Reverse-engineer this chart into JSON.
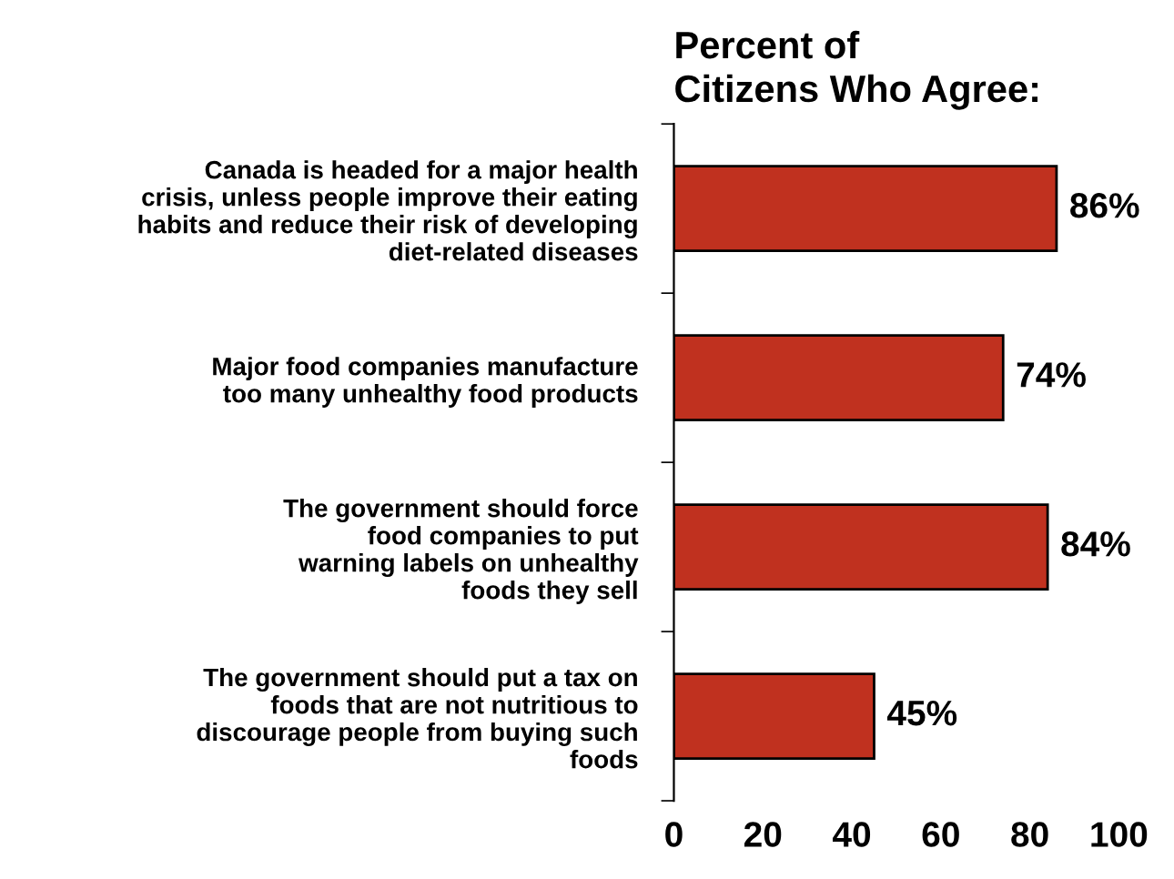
{
  "chart_data": {
    "type": "bar",
    "orientation": "horizontal",
    "title": "Percent of\nCitizens Who Agree:",
    "categories": [
      "Canada is headed for a major health\ncrisis, unless people improve their eating\nhabits and reduce their risk of developing\ndiet-related diseases",
      "Major food companies manufacture\ntoo many unhealthy food products",
      "The government should force\nfood companies to put\nwarning labels on unhealthy\nfoods they sell",
      "The government should put a tax on\nfoods that are not nutritious to\ndiscourage people from buying such\nfoods"
    ],
    "values": [
      86,
      74,
      84,
      45
    ],
    "value_labels": [
      "86%",
      "74%",
      "84%",
      "45%"
    ],
    "color": "#c0311f",
    "xlim": [
      0,
      100
    ],
    "xticks": [
      0,
      20,
      40,
      60,
      80,
      100
    ],
    "grid": false,
    "legend": false
  }
}
